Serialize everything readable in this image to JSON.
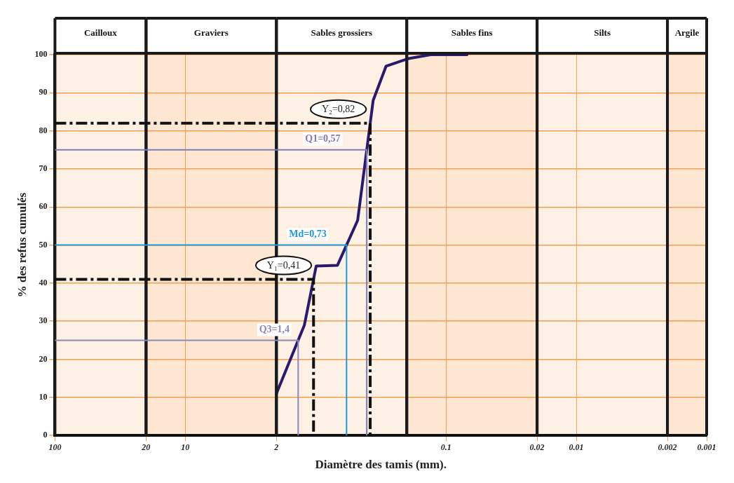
{
  "chart_data": {
    "type": "line",
    "xlabel": "Diamètre des tamis (mm).",
    "ylabel": "% des refus cumulés",
    "log": "x",
    "xlim": [
      100,
      0.001
    ],
    "xticks": [
      100,
      20,
      10,
      2,
      0.1,
      0.02,
      0.01,
      0.002,
      0.001
    ],
    "ylim": [
      0,
      100
    ],
    "yticks": [
      0,
      10,
      20,
      30,
      40,
      50,
      60,
      70,
      80,
      90,
      100
    ],
    "grid": true,
    "legend": false,
    "series": [
      {
        "color": "#2a1a6e",
        "marker": "none",
        "line_style": "solid",
        "x": [
          2.0,
          1.22,
          0.99,
          0.68,
          0.476,
          0.362,
          0.288,
          0.193,
          0.131,
          0.069
        ],
        "values": [
          11,
          29,
          44.5,
          44.7,
          56.5,
          88,
          97,
          99,
          100,
          100
        ]
      }
    ],
    "ref_lines": [
      {
        "axis": "y",
        "value": 82,
        "color": "#111111",
        "line_style": "dashed"
      },
      {
        "axis": "y",
        "value": 75,
        "color": "#7d7bb8",
        "line_style": "solid"
      },
      {
        "axis": "y",
        "value": 50,
        "color": "#1e9ad6",
        "line_style": "solid"
      },
      {
        "axis": "y",
        "value": 41,
        "color": "#111111",
        "line_style": "dashed"
      },
      {
        "axis": "y",
        "value": 25,
        "color": "#8a8ab8",
        "line_style": "solid"
      }
    ],
    "annotations": [
      {
        "text": "Y₂=0,82",
        "x": 0.38,
        "y": 82
      },
      {
        "text": "Q1=0,57",
        "x": 0.57,
        "y": 75
      },
      {
        "text": "Md=0,73",
        "x": 0.73,
        "y": 50
      },
      {
        "text": "Y₁=0,41",
        "x": 1.0,
        "y": 41
      },
      {
        "text": "Q3=1,4",
        "x": 1.4,
        "y": 25
      }
    ],
    "bands": [
      {
        "axis": "x",
        "from": 100,
        "to": 20,
        "label": "Cailloux",
        "color": "#fdf0e4"
      },
      {
        "axis": "x",
        "from": 20,
        "to": 2,
        "label": "Graviers",
        "color": "#fde6d2"
      },
      {
        "axis": "x",
        "from": 2,
        "to": 0.2,
        "label": "Sables grossiers",
        "color": "#fdf0e4"
      },
      {
        "axis": "x",
        "from": 0.2,
        "to": 0.02,
        "label": "Sables fins",
        "color": "#fde6d2"
      },
      {
        "axis": "x",
        "from": 0.02,
        "to": 0.002,
        "label": "Silts",
        "color": "#fdf0e4"
      },
      {
        "axis": "x",
        "from": 0.002,
        "to": 0.001,
        "label": "Argile",
        "color": "#fde6d2"
      }
    ]
  }
}
